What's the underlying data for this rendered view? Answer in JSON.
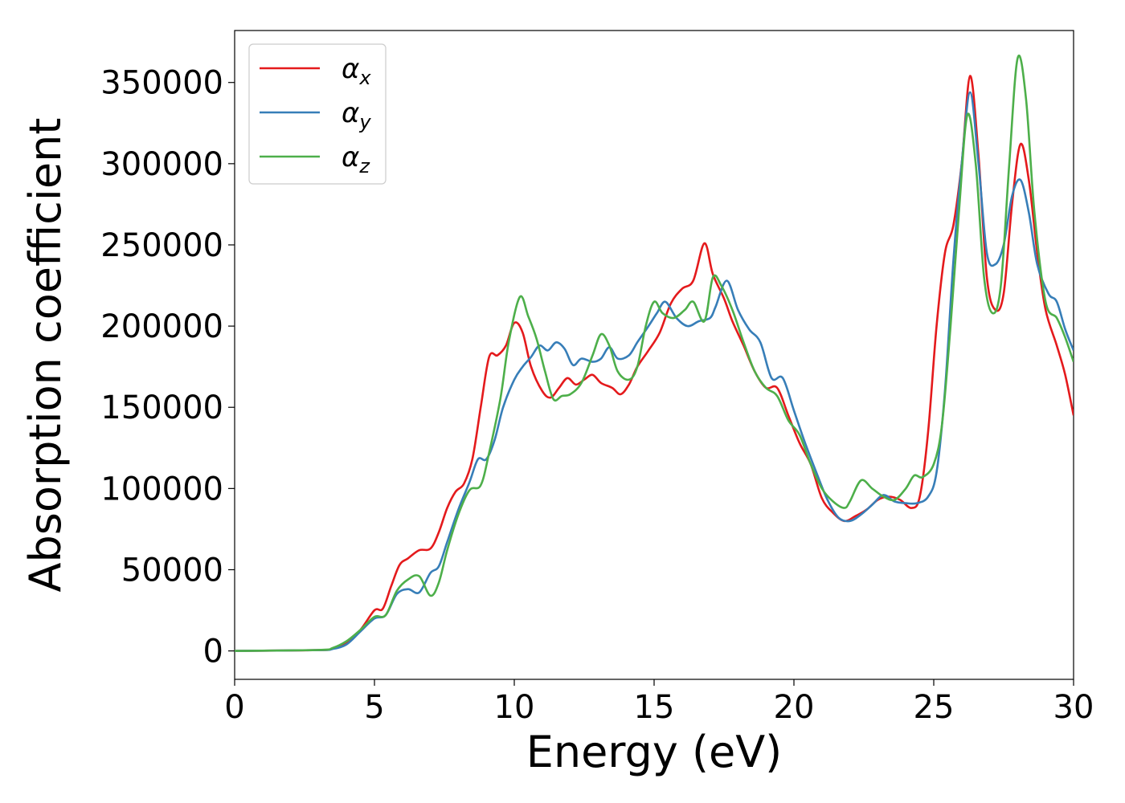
{
  "chart_data": {
    "type": "line",
    "xlabel": "Energy (eV)",
    "ylabel": "Absorption coefficient",
    "xlim": [
      0,
      30
    ],
    "ylim": [
      -17500,
      382000
    ],
    "xticks": [
      0,
      5,
      10,
      15,
      20,
      25,
      30
    ],
    "yticks": [
      0,
      50000,
      100000,
      150000,
      200000,
      250000,
      300000,
      350000
    ],
    "grid": false,
    "legend_position": "top-left",
    "series": [
      {
        "name": "α",
        "subscript": "x",
        "color": "#e41a1c",
        "points": [
          [
            0,
            0
          ],
          [
            3,
            500
          ],
          [
            3.5,
            1500
          ],
          [
            4,
            5000
          ],
          [
            4.5,
            13000
          ],
          [
            5,
            25000
          ],
          [
            5.3,
            26000
          ],
          [
            5.6,
            40000
          ],
          [
            5.9,
            53000
          ],
          [
            6.2,
            57000
          ],
          [
            6.6,
            62000
          ],
          [
            7,
            63000
          ],
          [
            7.3,
            73000
          ],
          [
            7.6,
            88000
          ],
          [
            7.9,
            98000
          ],
          [
            8.2,
            103000
          ],
          [
            8.5,
            118000
          ],
          [
            8.8,
            150000
          ],
          [
            9.1,
            181000
          ],
          [
            9.4,
            182000
          ],
          [
            9.7,
            188000
          ],
          [
            10,
            202000
          ],
          [
            10.3,
            196000
          ],
          [
            10.6,
            175000
          ],
          [
            11,
            160000
          ],
          [
            11.3,
            156000
          ],
          [
            11.6,
            162000
          ],
          [
            11.9,
            168000
          ],
          [
            12.2,
            164000
          ],
          [
            12.5,
            167000
          ],
          [
            12.8,
            170000
          ],
          [
            13.1,
            165000
          ],
          [
            13.5,
            162000
          ],
          [
            13.8,
            158000
          ],
          [
            14.1,
            164000
          ],
          [
            14.4,
            175000
          ],
          [
            14.8,
            185000
          ],
          [
            15.2,
            196000
          ],
          [
            15.6,
            214000
          ],
          [
            16,
            223000
          ],
          [
            16.4,
            228000
          ],
          [
            16.8,
            251000
          ],
          [
            17.1,
            232000
          ],
          [
            17.5,
            217000
          ],
          [
            17.8,
            203000
          ],
          [
            18.2,
            188000
          ],
          [
            18.6,
            172000
          ],
          [
            19,
            162000
          ],
          [
            19.4,
            162000
          ],
          [
            19.8,
            145000
          ],
          [
            20.2,
            128000
          ],
          [
            20.6,
            115000
          ],
          [
            21,
            94000
          ],
          [
            21.4,
            85000
          ],
          [
            21.8,
            80000
          ],
          [
            22.2,
            83000
          ],
          [
            22.6,
            87000
          ],
          [
            23,
            93000
          ],
          [
            23.4,
            95000
          ],
          [
            23.8,
            93000
          ],
          [
            24.2,
            88000
          ],
          [
            24.5,
            95000
          ],
          [
            24.8,
            135000
          ],
          [
            25.1,
            200000
          ],
          [
            25.4,
            245000
          ],
          [
            25.7,
            262000
          ],
          [
            26,
            300000
          ],
          [
            26.3,
            354000
          ],
          [
            26.6,
            305000
          ],
          [
            26.9,
            230000
          ],
          [
            27.2,
            210000
          ],
          [
            27.5,
            220000
          ],
          [
            27.8,
            275000
          ],
          [
            28.1,
            312000
          ],
          [
            28.4,
            290000
          ],
          [
            28.7,
            245000
          ],
          [
            29,
            210000
          ],
          [
            29.4,
            188000
          ],
          [
            29.7,
            170000
          ],
          [
            30,
            145000
          ]
        ]
      },
      {
        "name": "α",
        "subscript": "y",
        "color": "#377eb8",
        "points": [
          [
            0,
            0
          ],
          [
            3,
            500
          ],
          [
            3.5,
            1200
          ],
          [
            4,
            4000
          ],
          [
            4.5,
            12000
          ],
          [
            5,
            20000
          ],
          [
            5.4,
            22000
          ],
          [
            5.8,
            35000
          ],
          [
            6.2,
            38000
          ],
          [
            6.6,
            36000
          ],
          [
            7,
            48000
          ],
          [
            7.3,
            52000
          ],
          [
            7.6,
            67000
          ],
          [
            8,
            87000
          ],
          [
            8.4,
            104000
          ],
          [
            8.7,
            118000
          ],
          [
            9,
            118000
          ],
          [
            9.3,
            130000
          ],
          [
            9.6,
            150000
          ],
          [
            10,
            167000
          ],
          [
            10.3,
            175000
          ],
          [
            10.6,
            181000
          ],
          [
            10.9,
            188000
          ],
          [
            11.2,
            185000
          ],
          [
            11.5,
            190000
          ],
          [
            11.8,
            186000
          ],
          [
            12.1,
            176000
          ],
          [
            12.4,
            180000
          ],
          [
            12.8,
            178000
          ],
          [
            13.1,
            180000
          ],
          [
            13.4,
            187000
          ],
          [
            13.7,
            180000
          ],
          [
            14.1,
            182000
          ],
          [
            14.4,
            190000
          ],
          [
            14.8,
            200000
          ],
          [
            15.1,
            208000
          ],
          [
            15.4,
            215000
          ],
          [
            15.8,
            205000
          ],
          [
            16.2,
            200000
          ],
          [
            16.6,
            203000
          ],
          [
            17,
            205000
          ],
          [
            17.2,
            212000
          ],
          [
            17.6,
            228000
          ],
          [
            18,
            210000
          ],
          [
            18.4,
            198000
          ],
          [
            18.8,
            190000
          ],
          [
            19.2,
            168000
          ],
          [
            19.6,
            168000
          ],
          [
            20,
            148000
          ],
          [
            20.4,
            128000
          ],
          [
            20.8,
            110000
          ],
          [
            21.2,
            93000
          ],
          [
            21.6,
            82000
          ],
          [
            22,
            80000
          ],
          [
            22.4,
            84000
          ],
          [
            22.8,
            90000
          ],
          [
            23.2,
            96000
          ],
          [
            23.6,
            92000
          ],
          [
            24,
            91000
          ],
          [
            24.4,
            91000
          ],
          [
            24.8,
            95000
          ],
          [
            25.1,
            110000
          ],
          [
            25.4,
            160000
          ],
          [
            25.7,
            240000
          ],
          [
            26,
            300000
          ],
          [
            26.3,
            344000
          ],
          [
            26.6,
            300000
          ],
          [
            26.9,
            245000
          ],
          [
            27.2,
            238000
          ],
          [
            27.5,
            250000
          ],
          [
            27.8,
            280000
          ],
          [
            28.1,
            290000
          ],
          [
            28.4,
            270000
          ],
          [
            28.7,
            238000
          ],
          [
            29.1,
            220000
          ],
          [
            29.4,
            215000
          ],
          [
            29.7,
            198000
          ],
          [
            30,
            185000
          ]
        ]
      },
      {
        "name": "α",
        "subscript": "z",
        "color": "#4daf4a",
        "points": [
          [
            0,
            0
          ],
          [
            3,
            600
          ],
          [
            3.5,
            1800
          ],
          [
            4,
            6000
          ],
          [
            4.5,
            13000
          ],
          [
            5,
            21000
          ],
          [
            5.4,
            22000
          ],
          [
            5.8,
            37000
          ],
          [
            6.2,
            44000
          ],
          [
            6.6,
            46000
          ],
          [
            7,
            34000
          ],
          [
            7.3,
            42000
          ],
          [
            7.6,
            62000
          ],
          [
            8,
            84000
          ],
          [
            8.4,
            99000
          ],
          [
            8.8,
            102000
          ],
          [
            9.1,
            122000
          ],
          [
            9.5,
            155000
          ],
          [
            9.8,
            190000
          ],
          [
            10.2,
            218000
          ],
          [
            10.5,
            206000
          ],
          [
            10.8,
            192000
          ],
          [
            11.1,
            172000
          ],
          [
            11.4,
            155000
          ],
          [
            11.7,
            157000
          ],
          [
            12,
            158000
          ],
          [
            12.4,
            165000
          ],
          [
            12.8,
            182000
          ],
          [
            13.1,
            195000
          ],
          [
            13.4,
            188000
          ],
          [
            13.7,
            172000
          ],
          [
            14.1,
            167000
          ],
          [
            14.4,
            175000
          ],
          [
            14.7,
            200000
          ],
          [
            15,
            215000
          ],
          [
            15.3,
            208000
          ],
          [
            15.7,
            205000
          ],
          [
            16.1,
            210000
          ],
          [
            16.4,
            215000
          ],
          [
            16.8,
            203000
          ],
          [
            17.1,
            230000
          ],
          [
            17.4,
            225000
          ],
          [
            17.8,
            210000
          ],
          [
            18.2,
            190000
          ],
          [
            18.6,
            172000
          ],
          [
            19,
            162000
          ],
          [
            19.4,
            157000
          ],
          [
            19.8,
            142000
          ],
          [
            20.2,
            133000
          ],
          [
            20.6,
            115000
          ],
          [
            21,
            100000
          ],
          [
            21.4,
            92000
          ],
          [
            21.8,
            88000
          ],
          [
            22,
            92000
          ],
          [
            22.4,
            105000
          ],
          [
            22.8,
            100000
          ],
          [
            23.2,
            95000
          ],
          [
            23.6,
            93000
          ],
          [
            24,
            100000
          ],
          [
            24.3,
            108000
          ],
          [
            24.6,
            107000
          ],
          [
            25,
            115000
          ],
          [
            25.3,
            140000
          ],
          [
            25.6,
            200000
          ],
          [
            25.9,
            270000
          ],
          [
            26.2,
            330000
          ],
          [
            26.5,
            300000
          ],
          [
            26.8,
            230000
          ],
          [
            27.1,
            208000
          ],
          [
            27.4,
            225000
          ],
          [
            27.7,
            300000
          ],
          [
            28,
            365000
          ],
          [
            28.3,
            340000
          ],
          [
            28.6,
            270000
          ],
          [
            29,
            215000
          ],
          [
            29.4,
            205000
          ],
          [
            29.7,
            193000
          ],
          [
            30,
            178000
          ]
        ]
      }
    ]
  }
}
